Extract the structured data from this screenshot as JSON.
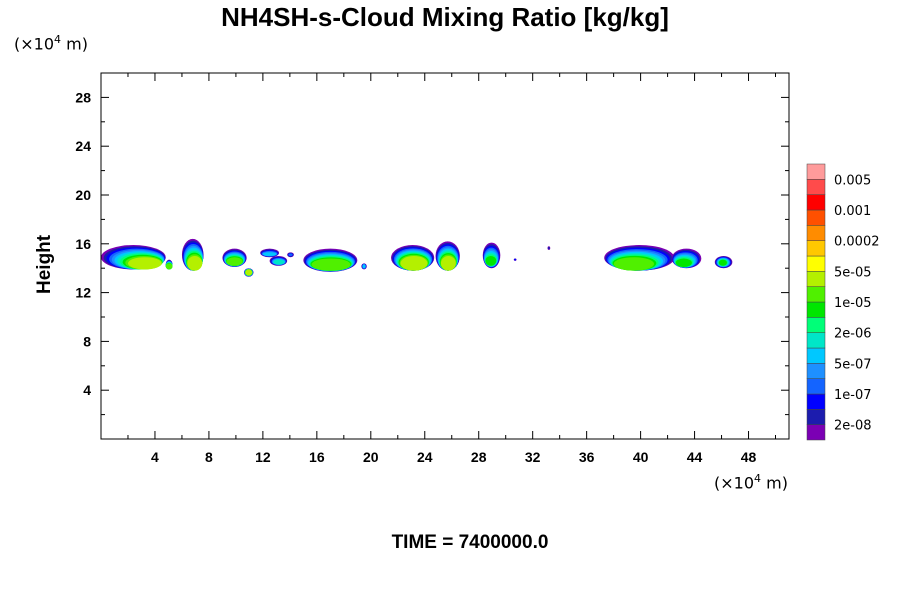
{
  "chart_data": {
    "type": "heatmap",
    "title": "NH4SH-s-Cloud Mixing Ratio [kg/kg]",
    "ylabel": "Height",
    "x_unit": {
      "prefix": "(×10",
      "exp": "4",
      "suffix": " m)"
    },
    "y_unit": {
      "prefix": "(×10",
      "exp": "4",
      "suffix": " m)"
    },
    "xlim": [
      0,
      51
    ],
    "ylim": [
      0,
      30
    ],
    "x_ticks": [
      "4",
      "8",
      "12",
      "16",
      "20",
      "24",
      "28",
      "32",
      "36",
      "40",
      "44",
      "48"
    ],
    "x_tick_values": [
      4,
      8,
      12,
      16,
      20,
      24,
      28,
      32,
      36,
      40,
      44,
      48
    ],
    "y_ticks": [
      "4",
      "8",
      "12",
      "16",
      "20",
      "24",
      "28"
    ],
    "y_tick_values": [
      4,
      8,
      12,
      16,
      20,
      24,
      28
    ],
    "footer": "TIME = 7400000.0",
    "colorbar": {
      "colors": [
        "#7b00b4",
        "#1c1cae",
        "#0000ff",
        "#1464ff",
        "#1e90ff",
        "#00c8ff",
        "#00e6c8",
        "#00ff78",
        "#00e600",
        "#50f000",
        "#b4f000",
        "#ffff00",
        "#ffc800",
        "#ff8c00",
        "#ff5000",
        "#ff0000",
        "#ff4b4b",
        "#ff9b9b"
      ],
      "labels": [
        "2e-08",
        "1e-07",
        "5e-07",
        "2e-06",
        "1e-05",
        "5e-05",
        "0.0002",
        "0.001",
        "0.005"
      ],
      "label_bands": [
        1,
        3,
        5,
        7,
        9,
        11,
        13,
        15,
        17
      ]
    },
    "cloud_cells": [
      {
        "x": [
          0.0,
          4.8
        ],
        "top": 15.9,
        "base": 13.9,
        "core_x": [
          2.0,
          4.5
        ],
        "core_base": 13.9,
        "core_top": 14.9,
        "max_band": 10
      },
      {
        "x": [
          4.8,
          5.3
        ],
        "top": 14.7,
        "base": 13.9,
        "core_x": [
          4.8,
          5.3
        ],
        "core_base": 13.9,
        "core_top": 14.4,
        "max_band": 9
      },
      {
        "x": [
          6.0,
          7.6
        ],
        "top": 16.4,
        "base": 13.8,
        "core_x": [
          6.4,
          7.5
        ],
        "core_base": 13.8,
        "core_top": 15.0,
        "max_band": 10
      },
      {
        "x": [
          9.0,
          10.8
        ],
        "top": 15.6,
        "base": 14.1,
        "core_x": [
          9.3,
          10.5
        ],
        "core_base": 14.2,
        "core_top": 14.9,
        "max_band": 9
      },
      {
        "x": [
          10.6,
          11.3
        ],
        "top": 14.0,
        "base": 13.3,
        "core_x": [
          10.7,
          11.2
        ],
        "core_base": 13.4,
        "core_top": 13.9,
        "max_band": 10
      },
      {
        "x": [
          11.8,
          13.2
        ],
        "top": 15.6,
        "base": 14.9,
        "core_x": [
          12.0,
          13.0
        ],
        "core_base": 15.0,
        "core_top": 15.3,
        "max_band": 5
      },
      {
        "x": [
          12.5,
          13.8
        ],
        "top": 15.0,
        "base": 14.2,
        "core_x": [
          12.8,
          13.6
        ],
        "core_base": 14.3,
        "core_top": 14.7,
        "max_band": 6
      },
      {
        "x": [
          13.8,
          14.3
        ],
        "top": 15.3,
        "base": 14.9,
        "core_x": [
          13.9,
          14.2
        ],
        "core_base": 15.0,
        "core_top": 15.2,
        "max_band": 3
      },
      {
        "x": [
          15.0,
          19.0
        ],
        "top": 15.6,
        "base": 13.7,
        "core_x": [
          15.6,
          18.5
        ],
        "core_base": 13.8,
        "core_top": 14.8,
        "max_band": 9
      },
      {
        "x": [
          19.3,
          19.7
        ],
        "top": 14.4,
        "base": 13.9,
        "core_x": [
          19.4,
          19.6
        ],
        "core_base": 14.0,
        "core_top": 14.3,
        "max_band": 5
      },
      {
        "x": [
          21.5,
          24.7
        ],
        "top": 15.9,
        "base": 13.8,
        "core_x": [
          22.2,
          24.2
        ],
        "core_base": 13.8,
        "core_top": 15.0,
        "max_band": 10
      },
      {
        "x": [
          24.8,
          26.6
        ],
        "top": 16.2,
        "base": 13.8,
        "core_x": [
          25.2,
          26.3
        ],
        "core_base": 13.8,
        "core_top": 15.0,
        "max_band": 10
      },
      {
        "x": [
          28.3,
          29.6
        ],
        "top": 16.1,
        "base": 14.0,
        "core_x": [
          28.5,
          29.3
        ],
        "core_base": 14.2,
        "core_top": 15.0,
        "max_band": 8
      },
      {
        "x": [
          30.6,
          30.8
        ],
        "top": 14.8,
        "base": 14.6,
        "core_x": [
          30.65,
          30.75
        ],
        "core_base": 14.65,
        "core_top": 14.75,
        "max_band": 2
      },
      {
        "x": [
          33.1,
          33.3
        ],
        "top": 15.8,
        "base": 15.5,
        "core_x": [
          33.15,
          33.25
        ],
        "core_base": 15.55,
        "core_top": 15.75,
        "max_band": 1
      },
      {
        "x": [
          37.3,
          42.5
        ],
        "top": 15.9,
        "base": 13.8,
        "core_x": [
          38.0,
          41.0
        ],
        "core_base": 13.8,
        "core_top": 14.9,
        "max_band": 9
      },
      {
        "x": [
          42.3,
          44.5
        ],
        "top": 15.6,
        "base": 14.0,
        "core_x": [
          42.6,
          43.8
        ],
        "core_base": 14.1,
        "core_top": 14.8,
        "max_band": 8
      },
      {
        "x": [
          45.5,
          46.8
        ],
        "top": 15.0,
        "base": 14.0,
        "core_x": [
          45.8,
          46.4
        ],
        "core_base": 14.2,
        "core_top": 14.7,
        "max_band": 8
      }
    ]
  }
}
